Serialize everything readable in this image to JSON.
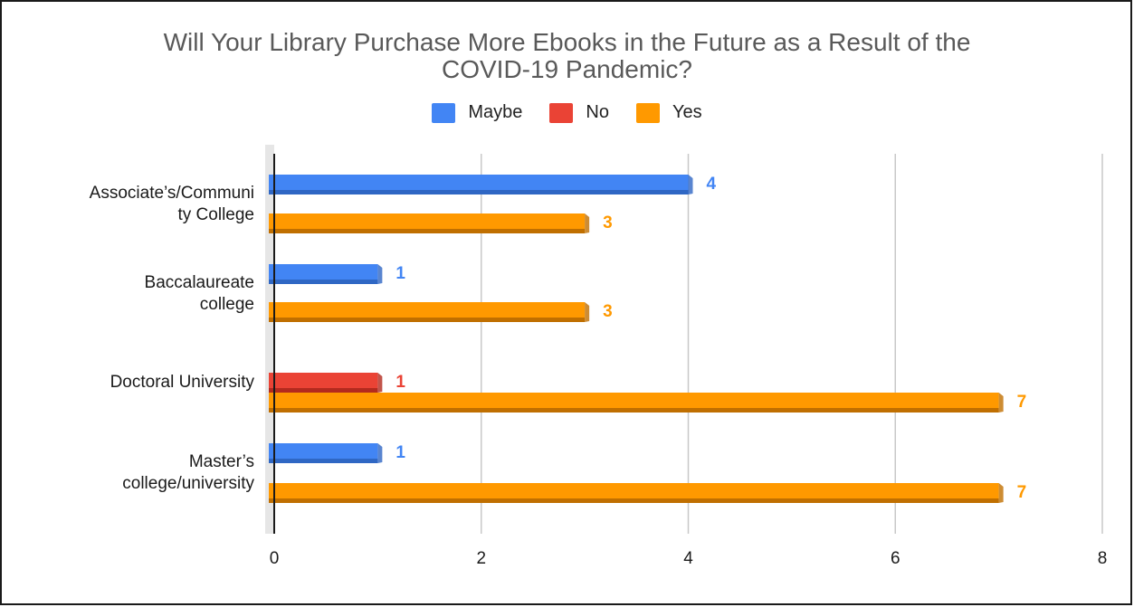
{
  "chart_data": {
    "type": "bar",
    "orientation": "horizontal",
    "title": "Will Your Library Purchase More Ebooks in the Future as a Result of the\nCOVID-19 Pandemic?",
    "legend_position": "top",
    "categories": [
      [
        "Associate’s/Communi",
        "ty College"
      ],
      [
        "Baccalaureate",
        "college"
      ],
      [
        "Doctoral University"
      ],
      [
        "Master’s",
        "college/university"
      ]
    ],
    "series": [
      {
        "name": "Maybe",
        "color": "#4285f4",
        "shade": "#2f67c4",
        "values": [
          4,
          1,
          null,
          1
        ]
      },
      {
        "name": "No",
        "color": "#ea4335",
        "shade": "#b32a1e",
        "values": [
          null,
          null,
          1,
          null
        ]
      },
      {
        "name": "Yes",
        "color": "#ff9900",
        "shade": "#c06f00",
        "values": [
          3,
          3,
          7,
          7
        ]
      }
    ],
    "bars": [
      {
        "category": 0,
        "series": 0
      },
      {
        "category": 0,
        "series": 2
      },
      {
        "category": 1,
        "series": 0
      },
      {
        "category": 1,
        "series": 2
      },
      {
        "category": 2,
        "series": 1
      },
      {
        "category": 2,
        "series": 2
      },
      {
        "category": 3,
        "series": 0
      },
      {
        "category": 3,
        "series": 2
      }
    ],
    "xlim": [
      0,
      8
    ],
    "xticks": [
      0,
      2,
      4,
      6,
      8
    ],
    "grid": true,
    "xlabel": "",
    "ylabel": ""
  }
}
